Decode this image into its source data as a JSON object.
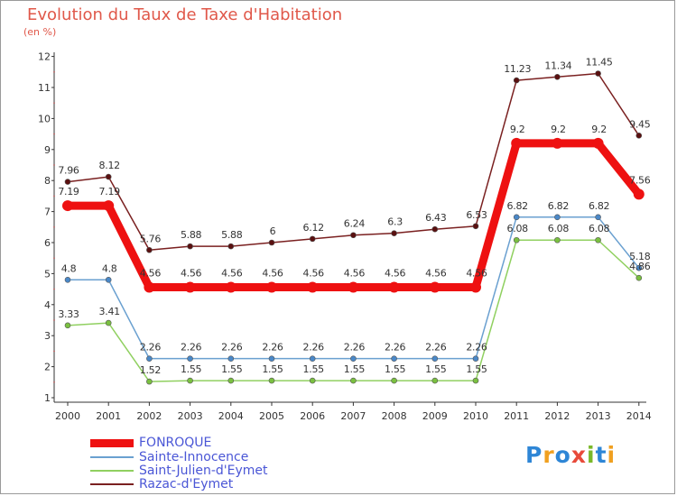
{
  "title": "Evolution du Taux de Taxe d'Habitation",
  "subtitle": "(en %)",
  "logo": {
    "text": "Proxiti",
    "colors": [
      "#2e86d6",
      "#f0a020",
      "#2e86d6",
      "#e84a3a",
      "#7ab828",
      "#2e86d6",
      "#f0a020"
    ]
  },
  "chart_data": {
    "type": "line",
    "title": "Evolution du Taux de Taxe d'Habitation",
    "ylabel": "(en %)",
    "xlabel": "",
    "ylim": [
      1,
      12
    ],
    "yticks": [
      1,
      2,
      3,
      4,
      5,
      6,
      7,
      8,
      9,
      10,
      11,
      12
    ],
    "grid": false,
    "legend_position": "bottom-left",
    "x": [
      "2000",
      "2001",
      "2002",
      "2003",
      "2004",
      "2005",
      "2006",
      "2007",
      "2008",
      "2009",
      "2010",
      "2011",
      "2012",
      "2013",
      "2014"
    ],
    "series": [
      {
        "name": "Razac-d'Eymet",
        "color": "#7a2020",
        "point": "#5a1010",
        "width": 1.5,
        "radius": 3,
        "values": [
          7.96,
          8.12,
          5.76,
          5.88,
          5.88,
          6,
          6.12,
          6.24,
          6.3,
          6.43,
          6.53,
          11.23,
          11.34,
          11.45,
          9.45
        ],
        "labels": [
          "7.96",
          "8.12",
          "5.76",
          "5.88",
          "5.88",
          "6",
          "6.12",
          "6.24",
          "6.3",
          "6.43",
          "6.53",
          "11.23",
          "11.34",
          "11.45",
          "9.45"
        ]
      },
      {
        "name": "Saint-Julien-d'Eymet",
        "color": "#90d060",
        "point": "#7ac040",
        "width": 1.5,
        "radius": 3,
        "values": [
          3.33,
          3.41,
          1.52,
          1.55,
          1.55,
          1.55,
          1.55,
          1.55,
          1.55,
          1.55,
          1.55,
          6.08,
          6.08,
          6.08,
          4.86
        ],
        "labels": [
          "3.33",
          "3.41",
          "1.52",
          "1.55",
          "1.55",
          "1.55",
          "1.55",
          "1.55",
          "1.55",
          "1.55",
          "1.55",
          "6.08",
          "6.08",
          "6.08",
          "4.86"
        ]
      },
      {
        "name": "Sainte-Innocence",
        "color": "#6aa0d0",
        "point": "#4a88c8",
        "width": 1.5,
        "radius": 3,
        "values": [
          4.8,
          4.8,
          2.26,
          2.26,
          2.26,
          2.26,
          2.26,
          2.26,
          2.26,
          2.26,
          2.26,
          6.82,
          6.82,
          6.82,
          5.18
        ],
        "labels": [
          "4.8",
          "4.8",
          "2.26",
          "2.26",
          "2.26",
          "2.26",
          "2.26",
          "2.26",
          "2.26",
          "2.26",
          "2.26",
          "6.82",
          "6.82",
          "6.82",
          "5.18"
        ]
      },
      {
        "name": "FONROQUE",
        "color": "#ee1111",
        "point": "#ee1111",
        "width": 9,
        "radius": 6,
        "values": [
          7.19,
          7.19,
          4.56,
          4.56,
          4.56,
          4.56,
          4.56,
          4.56,
          4.56,
          4.56,
          4.56,
          9.2,
          9.2,
          9.2,
          7.56
        ],
        "labels": [
          "7.19",
          "7.19",
          "4.56",
          "4.56",
          "4.56",
          "4.56",
          "4.56",
          "4.56",
          "4.56",
          "4.56",
          "4.56",
          "9.2",
          "9.2",
          "9.2",
          "7.56"
        ]
      }
    ]
  },
  "legend": [
    {
      "name": "FONROQUE",
      "color": "#ee1111",
      "thickness": 9
    },
    {
      "name": "Sainte-Innocence",
      "color": "#6aa0d0",
      "thickness": 2
    },
    {
      "name": "Saint-Julien-d'Eymet",
      "color": "#90d060",
      "thickness": 2
    },
    {
      "name": "Razac-d'Eymet",
      "color": "#7a2020",
      "thickness": 2
    }
  ]
}
